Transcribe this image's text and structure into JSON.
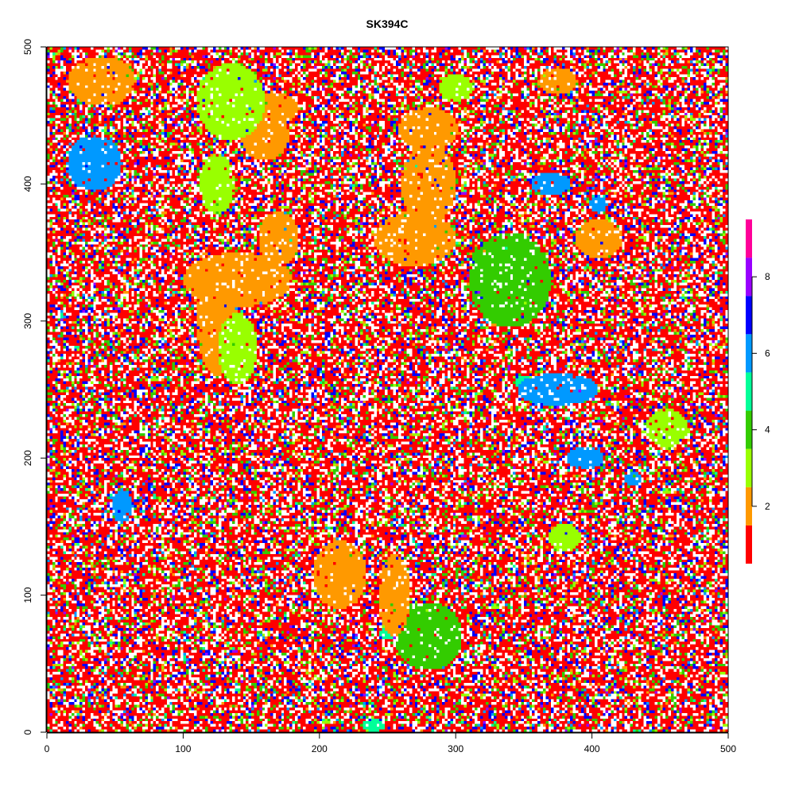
{
  "chart_data": {
    "type": "heatmap",
    "title": "SK394C",
    "xlabel": "",
    "ylabel": "",
    "xlim": [
      0,
      500
    ],
    "ylim": [
      0,
      500
    ],
    "x_ticks": [
      0,
      100,
      200,
      300,
      400,
      500
    ],
    "y_ticks": [
      0,
      100,
      200,
      300,
      400,
      500
    ],
    "legend": {
      "placement": "right",
      "tick_labels": [
        2,
        4,
        6,
        8
      ],
      "classes": [
        1,
        2,
        3,
        4,
        5,
        6,
        7,
        8,
        9
      ],
      "colors": [
        "#ff0000",
        "#ff9900",
        "#99ff00",
        "#33cc00",
        "#00ff99",
        "#0099ff",
        "#0000ff",
        "#9900ff",
        "#ff0099"
      ]
    },
    "class_mix_background": {
      "1": 0.52,
      "0": 0.22,
      "7": 0.09,
      "4": 0.07,
      "3": 0.04,
      "2": 0.02,
      "6": 0.02,
      "8": 0.01,
      "5": 0.01
    },
    "regions": [
      {
        "class": 3,
        "cx": 135,
        "cy": 460,
        "rx": 25,
        "ry": 28
      },
      {
        "class": 3,
        "cx": 125,
        "cy": 400,
        "rx": 13,
        "ry": 22
      },
      {
        "class": 3,
        "cx": 140,
        "cy": 280,
        "rx": 15,
        "ry": 26
      },
      {
        "class": 3,
        "cx": 455,
        "cy": 222,
        "rx": 15,
        "ry": 14
      },
      {
        "class": 3,
        "cx": 380,
        "cy": 142,
        "rx": 12,
        "ry": 10
      },
      {
        "class": 3,
        "cx": 300,
        "cy": 470,
        "rx": 12,
        "ry": 11
      },
      {
        "class": 2,
        "cx": 40,
        "cy": 475,
        "rx": 25,
        "ry": 18
      },
      {
        "class": 2,
        "cx": 165,
        "cy": 455,
        "rx": 20,
        "ry": 12
      },
      {
        "class": 2,
        "cx": 160,
        "cy": 435,
        "rx": 18,
        "ry": 18
      },
      {
        "class": 2,
        "cx": 280,
        "cy": 440,
        "rx": 22,
        "ry": 16
      },
      {
        "class": 2,
        "cx": 280,
        "cy": 400,
        "rx": 20,
        "ry": 30
      },
      {
        "class": 2,
        "cx": 270,
        "cy": 360,
        "rx": 30,
        "ry": 20
      },
      {
        "class": 2,
        "cx": 140,
        "cy": 330,
        "rx": 40,
        "ry": 20
      },
      {
        "class": 2,
        "cx": 125,
        "cy": 300,
        "rx": 15,
        "ry": 40
      },
      {
        "class": 2,
        "cx": 170,
        "cy": 360,
        "rx": 15,
        "ry": 20
      },
      {
        "class": 2,
        "cx": 405,
        "cy": 360,
        "rx": 18,
        "ry": 14
      },
      {
        "class": 2,
        "cx": 215,
        "cy": 115,
        "rx": 20,
        "ry": 25
      },
      {
        "class": 2,
        "cx": 255,
        "cy": 100,
        "rx": 12,
        "ry": 30
      },
      {
        "class": 2,
        "cx": 375,
        "cy": 475,
        "rx": 14,
        "ry": 10
      },
      {
        "class": 6,
        "cx": 35,
        "cy": 415,
        "rx": 20,
        "ry": 20
      },
      {
        "class": 6,
        "cx": 375,
        "cy": 250,
        "rx": 30,
        "ry": 12
      },
      {
        "class": 6,
        "cx": 395,
        "cy": 200,
        "rx": 14,
        "ry": 8
      },
      {
        "class": 6,
        "cx": 370,
        "cy": 400,
        "rx": 15,
        "ry": 8
      },
      {
        "class": 6,
        "cx": 55,
        "cy": 165,
        "rx": 8,
        "ry": 12
      },
      {
        "class": 6,
        "cx": 405,
        "cy": 385,
        "rx": 6,
        "ry": 6
      },
      {
        "class": 6,
        "cx": 430,
        "cy": 185,
        "rx": 6,
        "ry": 5
      },
      {
        "class": 5,
        "cx": 350,
        "cy": 255,
        "rx": 6,
        "ry": 5
      },
      {
        "class": 5,
        "cx": 240,
        "cy": 5,
        "rx": 8,
        "ry": 5
      },
      {
        "class": 5,
        "cx": 250,
        "cy": 72,
        "rx": 6,
        "ry": 5
      },
      {
        "class": 4,
        "cx": 340,
        "cy": 330,
        "rx": 30,
        "ry": 35
      },
      {
        "class": 4,
        "cx": 280,
        "cy": 70,
        "rx": 25,
        "ry": 25
      }
    ]
  }
}
